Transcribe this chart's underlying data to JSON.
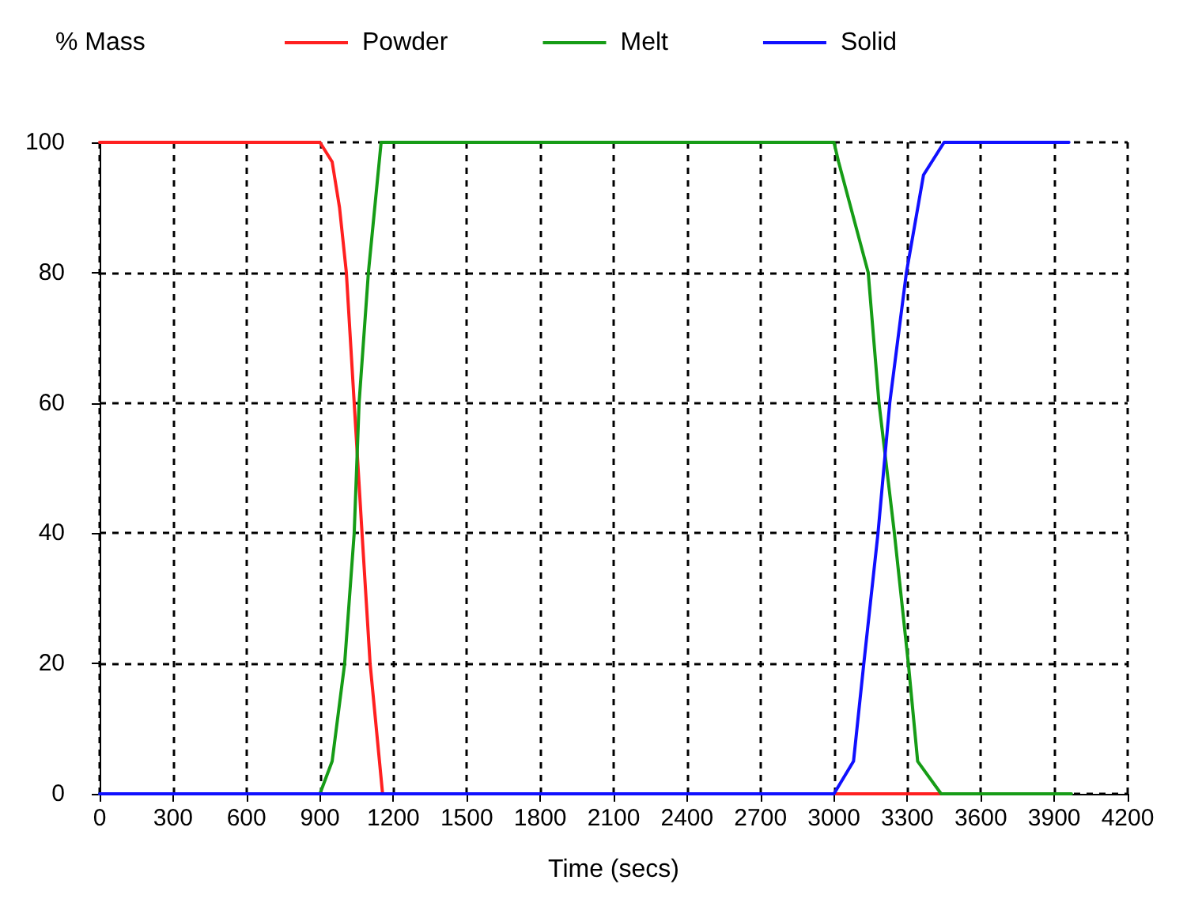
{
  "chart_data": {
    "type": "line",
    "xlabel": "Time (secs)",
    "ylabel": "% Mass",
    "xlim": [
      0,
      4200
    ],
    "ylim": [
      0,
      100
    ],
    "xticks": [
      0,
      300,
      600,
      900,
      1200,
      1500,
      1800,
      2100,
      2400,
      2700,
      3000,
      3300,
      3600,
      3900,
      4200
    ],
    "yticks": [
      0,
      20,
      40,
      60,
      80,
      100
    ],
    "grid": true,
    "legend": "top",
    "marker": "none",
    "line_style": "solid",
    "series": [
      {
        "name": "Powder",
        "color": "#ff2020",
        "x": [
          0,
          900,
          950,
          980,
          1008,
          1040,
          1072,
          1105,
          1156,
          3000,
          3450
        ],
        "values": [
          100,
          100,
          97,
          90,
          80,
          60,
          40,
          20,
          0,
          0,
          0
        ]
      },
      {
        "name": "Melt",
        "color": "#169c16",
        "x": [
          0,
          900,
          950,
          1001,
          1040,
          1060,
          1098,
          1150,
          3000,
          3019,
          3140,
          3184,
          3247,
          3304,
          3342,
          3438,
          3970
        ],
        "values": [
          0,
          0,
          5,
          20,
          40,
          60,
          80,
          100,
          100,
          97,
          80,
          60,
          40,
          20,
          5,
          0,
          0
        ]
      },
      {
        "name": "Solid",
        "color": "#1010ff",
        "x": [
          0,
          3000,
          3080,
          3122,
          3180,
          3228,
          3296,
          3366,
          3450,
          3960
        ],
        "values": [
          0,
          0,
          5,
          20,
          40,
          60,
          80,
          95,
          100,
          100
        ]
      }
    ]
  }
}
